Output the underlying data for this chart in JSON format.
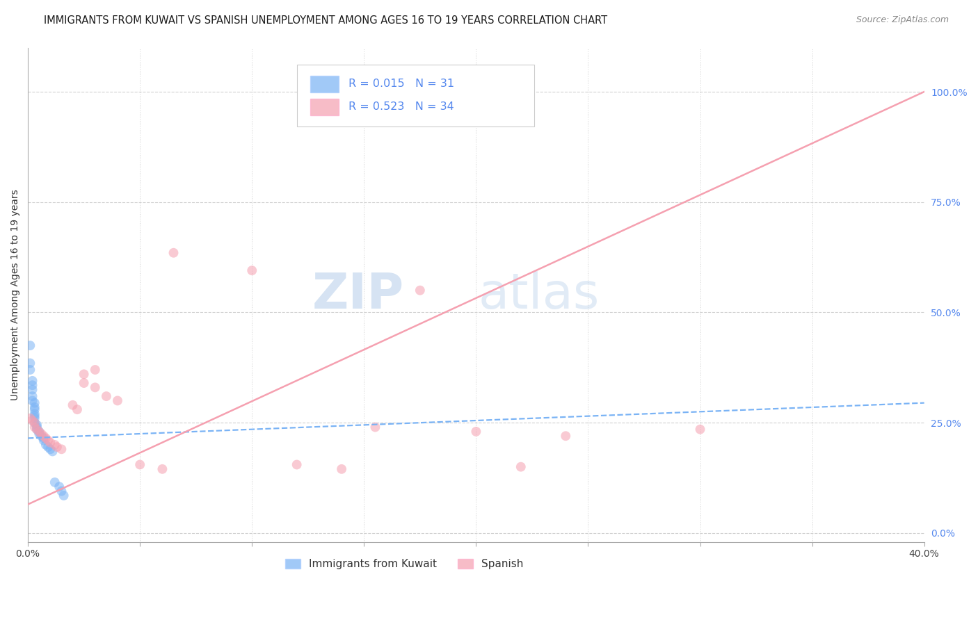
{
  "title": "IMMIGRANTS FROM KUWAIT VS SPANISH UNEMPLOYMENT AMONG AGES 16 TO 19 YEARS CORRELATION CHART",
  "source": "Source: ZipAtlas.com",
  "ylabel": "Unemployment Among Ages 16 to 19 years",
  "xlim": [
    0.0,
    0.4
  ],
  "ylim": [
    -0.02,
    1.1
  ],
  "xticks": [
    0.0,
    0.05,
    0.1,
    0.15,
    0.2,
    0.25,
    0.3,
    0.35,
    0.4
  ],
  "xticklabels": [
    "0.0%",
    "",
    "",
    "",
    "",
    "",
    "",
    "",
    "40.0%"
  ],
  "yticks_right": [
    0.0,
    0.25,
    0.5,
    0.75,
    1.0
  ],
  "ytick_right_labels": [
    "0.0%",
    "25.0%",
    "50.0%",
    "75.0%",
    "100.0%"
  ],
  "blue_R": 0.015,
  "blue_N": 31,
  "pink_R": 0.523,
  "pink_N": 34,
  "blue_scatter_x": [
    0.001,
    0.001,
    0.001,
    0.002,
    0.002,
    0.002,
    0.002,
    0.002,
    0.003,
    0.003,
    0.003,
    0.003,
    0.003,
    0.003,
    0.003,
    0.004,
    0.004,
    0.004,
    0.005,
    0.005,
    0.006,
    0.007,
    0.007,
    0.008,
    0.009,
    0.01,
    0.011,
    0.012,
    0.014,
    0.015,
    0.016
  ],
  "blue_scatter_y": [
    0.425,
    0.385,
    0.37,
    0.345,
    0.335,
    0.325,
    0.31,
    0.3,
    0.295,
    0.285,
    0.28,
    0.27,
    0.265,
    0.26,
    0.25,
    0.245,
    0.24,
    0.235,
    0.23,
    0.225,
    0.22,
    0.215,
    0.21,
    0.2,
    0.195,
    0.19,
    0.185,
    0.115,
    0.105,
    0.095,
    0.085
  ],
  "pink_scatter_x": [
    0.001,
    0.002,
    0.003,
    0.003,
    0.004,
    0.005,
    0.006,
    0.007,
    0.008,
    0.009,
    0.01,
    0.012,
    0.013,
    0.015,
    0.02,
    0.022,
    0.025,
    0.025,
    0.03,
    0.03,
    0.035,
    0.04,
    0.05,
    0.06,
    0.065,
    0.1,
    0.12,
    0.14,
    0.155,
    0.175,
    0.2,
    0.22,
    0.24,
    0.3
  ],
  "pink_scatter_y": [
    0.26,
    0.255,
    0.25,
    0.24,
    0.235,
    0.23,
    0.225,
    0.22,
    0.215,
    0.21,
    0.205,
    0.2,
    0.195,
    0.19,
    0.29,
    0.28,
    0.36,
    0.34,
    0.37,
    0.33,
    0.31,
    0.3,
    0.155,
    0.145,
    0.635,
    0.595,
    0.155,
    0.145,
    0.24,
    0.55,
    0.23,
    0.15,
    0.22,
    0.235
  ],
  "blue_line_x": [
    0.0,
    0.4
  ],
  "blue_line_y": [
    0.215,
    0.295
  ],
  "pink_line_x": [
    0.0,
    0.4
  ],
  "pink_line_y": [
    0.065,
    1.0
  ],
  "watermark_zip": "ZIP",
  "watermark_atlas": "atlas",
  "background_color": "#ffffff",
  "scatter_alpha": 0.55,
  "scatter_size": 100,
  "blue_color": "#7ab3f5",
  "pink_color": "#f5a0b0",
  "grid_color": "#d0d0d0",
  "title_fontsize": 10.5,
  "label_fontsize": 10,
  "tick_fontsize": 10,
  "legend_fontsize": 11,
  "right_tick_color": "#5588ee"
}
